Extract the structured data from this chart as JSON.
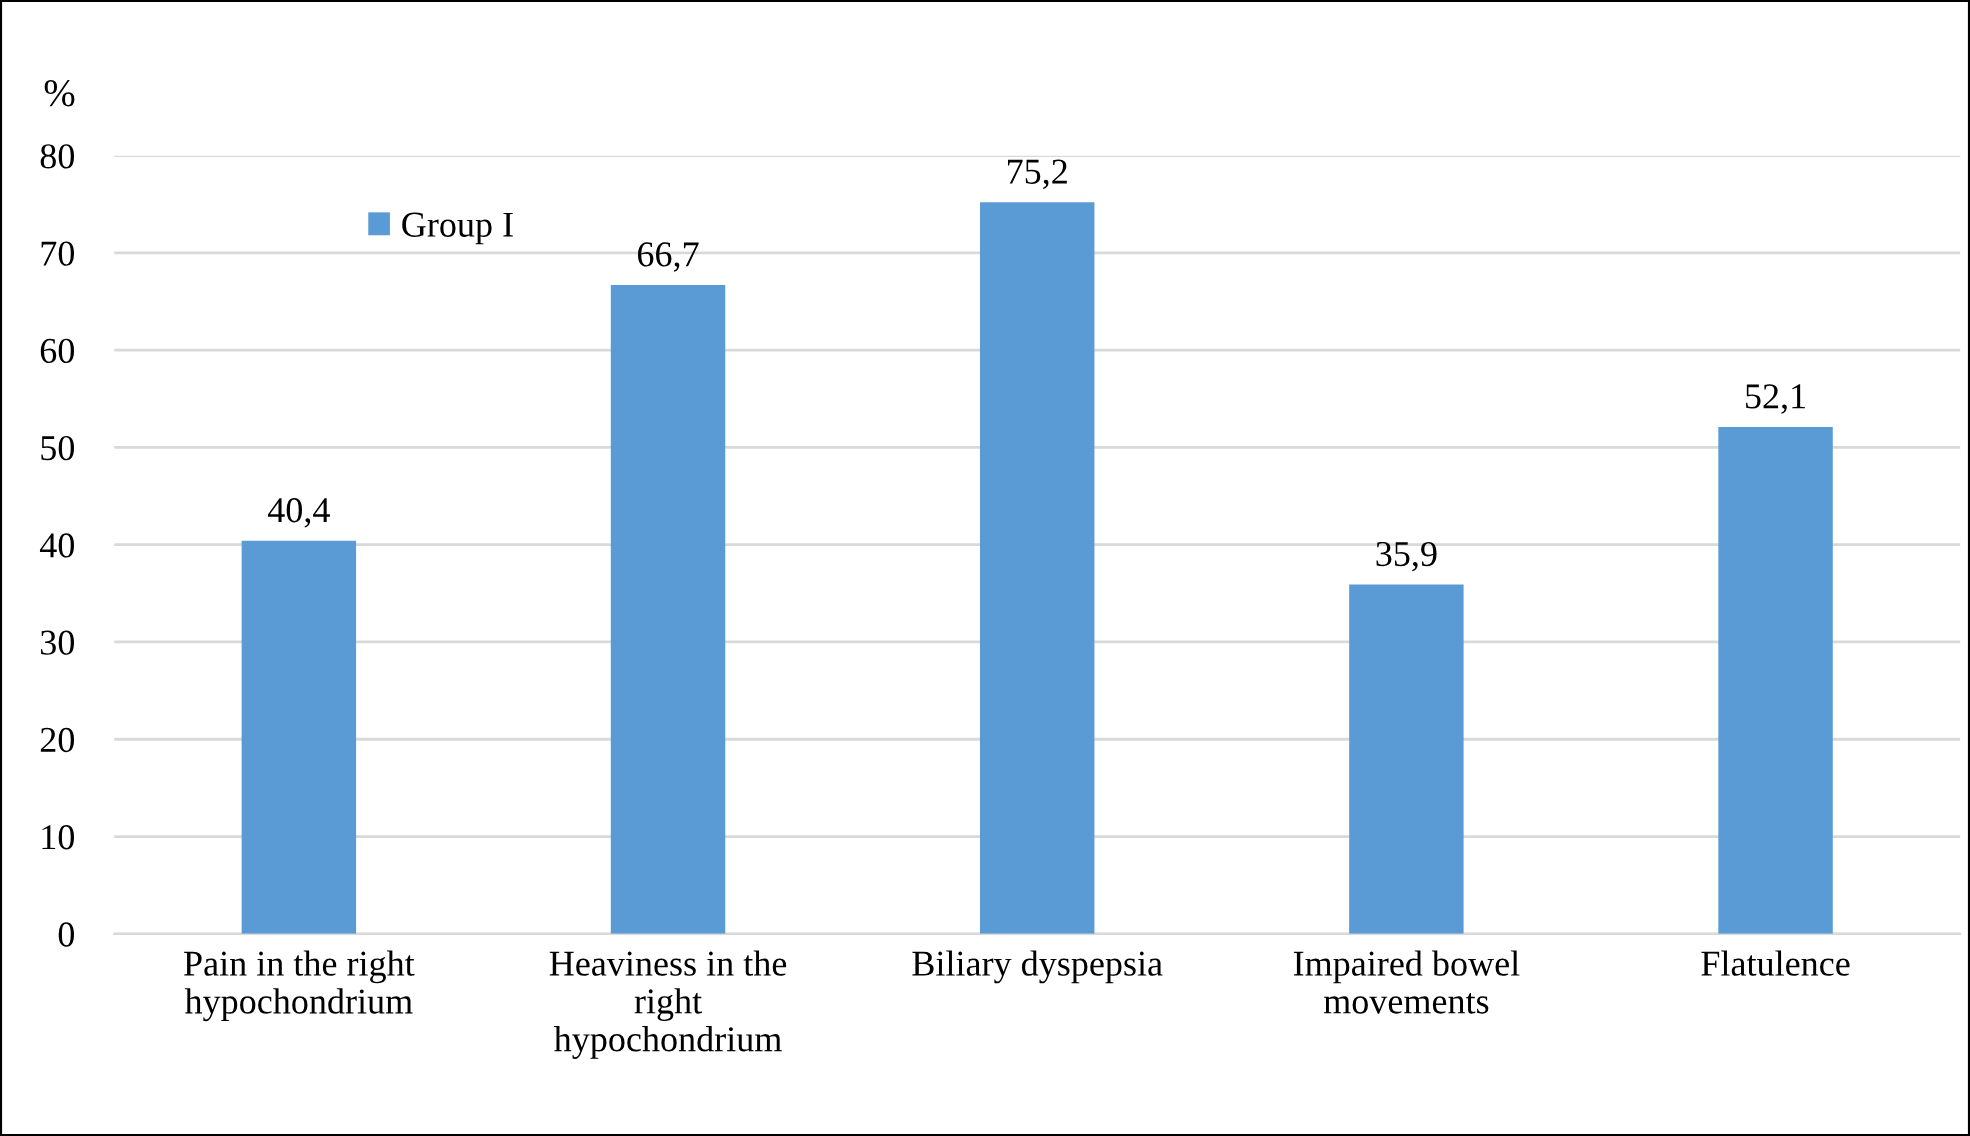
{
  "chart_data": {
    "type": "bar",
    "ylabel": "%",
    "categories": [
      "Pain in the right hypochondrium",
      "Heaviness in the right hypochondrium",
      "Biliary dyspepsia",
      "Impaired bowel movements",
      "Flatulence"
    ],
    "series": [
      {
        "name": "Group I",
        "color": "#5b9bd5",
        "values": [
          40.4,
          66.7,
          75.2,
          35.9,
          52.1
        ],
        "value_labels": [
          "40,4",
          "66,7",
          "75,2",
          "35,9",
          "52,1"
        ]
      }
    ],
    "ylim": [
      0,
      80
    ],
    "yticks": [
      0,
      10,
      20,
      30,
      40,
      50,
      60,
      70,
      80
    ],
    "grid": "y",
    "legend": "top left"
  }
}
